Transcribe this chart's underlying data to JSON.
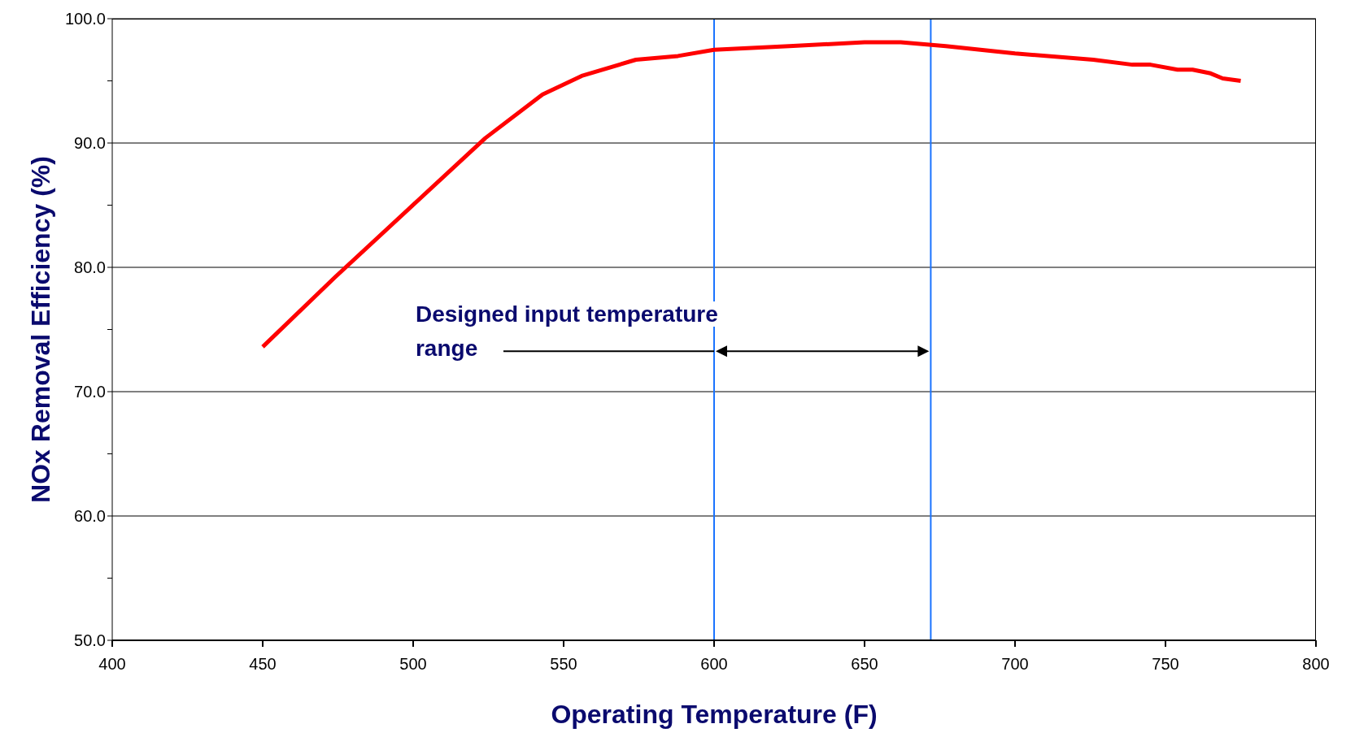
{
  "chart_data": {
    "type": "line",
    "xlabel": "Operating Temperature (F)",
    "ylabel": "NOx Removal Efficiency (%)",
    "x": [
      450,
      474,
      524,
      543,
      550,
      556,
      574,
      588,
      600,
      625,
      650,
      662,
      677,
      700,
      726,
      739,
      745,
      754,
      759,
      765,
      769,
      775
    ],
    "series": [
      {
        "color": "#ff0000",
        "values": [
          73.6,
          79.2,
          90.4,
          93.9,
          94.7,
          95.4,
          96.7,
          97.0,
          97.5,
          97.8,
          98.1,
          98.1,
          97.8,
          97.2,
          96.7,
          96.3,
          96.3,
          95.9,
          95.9,
          95.6,
          95.2,
          95.0
        ]
      }
    ],
    "xlim": [
      400,
      800
    ],
    "xticks": [
      400,
      450,
      500,
      550,
      600,
      650,
      700,
      750,
      800
    ],
    "ylim": [
      50,
      100
    ],
    "yticks": [
      {
        "value": 50,
        "label": "50.0"
      },
      {
        "value": 55,
        "label": null
      },
      {
        "value": 60,
        "label": "60.0"
      },
      {
        "value": 65,
        "label": null
      },
      {
        "value": 70,
        "label": "70.0"
      },
      {
        "value": 75,
        "label": null
      },
      {
        "value": 80,
        "label": "80.0"
      },
      {
        "value": 85,
        "label": null
      },
      {
        "value": 90,
        "label": "90.0"
      },
      {
        "value": 95,
        "label": null
      },
      {
        "value": 100,
        "label": "100.0"
      }
    ],
    "grid": "y",
    "marker": "none",
    "line_style": "solid",
    "ref_lines": [
      {
        "axis": "x",
        "value": 600,
        "color": "#1a73ff"
      },
      {
        "axis": "x",
        "value": 672,
        "color": "#1a73ff"
      }
    ],
    "annotations": [
      "Designed input temperature range"
    ]
  }
}
